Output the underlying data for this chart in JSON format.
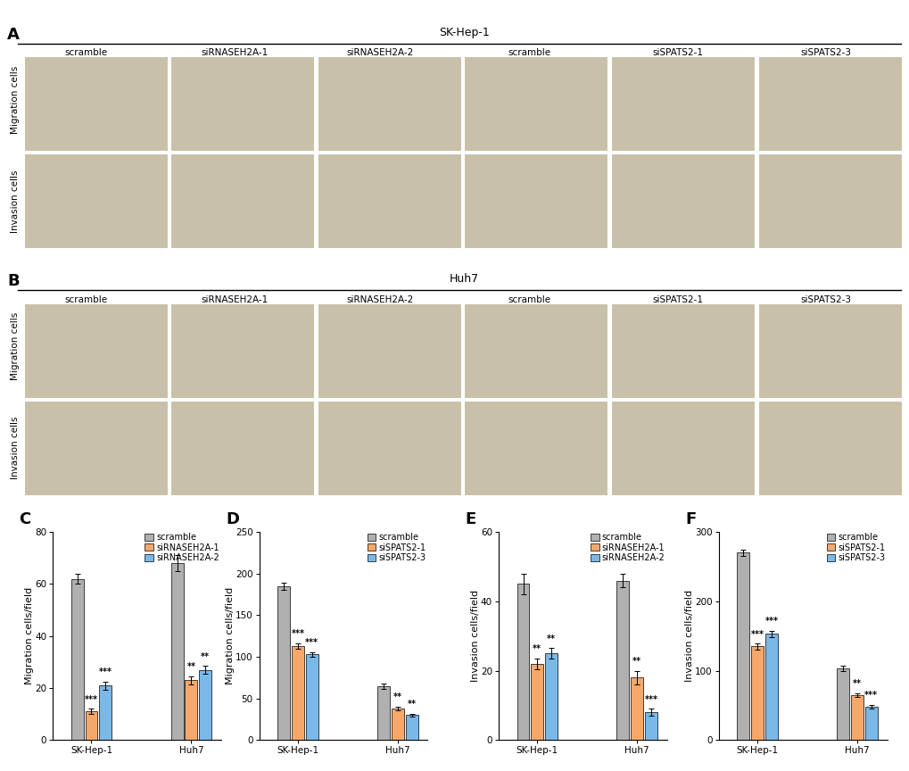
{
  "panel_C": {
    "title": "C",
    "ylabel": "Migration cells/field",
    "ylim": [
      0,
      80
    ],
    "yticks": [
      0,
      20,
      40,
      60,
      80
    ],
    "groups": [
      "SK-Hep-1",
      "Huh7"
    ],
    "legend": [
      "scramble",
      "siRNASEH2A-1",
      "siRNASEH2A-2"
    ],
    "values": [
      [
        62,
        11,
        21
      ],
      [
        68,
        23,
        27
      ]
    ],
    "errors": [
      [
        2.0,
        1.0,
        1.5
      ],
      [
        3.0,
        1.5,
        1.5
      ]
    ],
    "sig": [
      [
        "",
        "***",
        "***"
      ],
      [
        "",
        "**",
        "**"
      ]
    ]
  },
  "panel_D": {
    "title": "D",
    "ylabel": "Migration cells/field",
    "ylim": [
      0,
      250
    ],
    "yticks": [
      0,
      50,
      100,
      150,
      200,
      250
    ],
    "groups": [
      "SK-Hep-1",
      "Huh7"
    ],
    "legend": [
      "scramble",
      "siSPATS2-1",
      "siSPATS2-3"
    ],
    "values": [
      [
        185,
        113,
        103
      ],
      [
        65,
        38,
        30
      ]
    ],
    "errors": [
      [
        4.0,
        3.0,
        3.0
      ],
      [
        3.0,
        2.0,
        2.0
      ]
    ],
    "sig": [
      [
        "",
        "***",
        "***"
      ],
      [
        "",
        "**",
        "**"
      ]
    ]
  },
  "panel_E": {
    "title": "E",
    "ylabel": "Invasion cells/field",
    "ylim": [
      0,
      60
    ],
    "yticks": [
      0,
      20,
      40,
      60
    ],
    "groups": [
      "SK-Hep-1",
      "Huh7"
    ],
    "legend": [
      "scramble",
      "siRNASEH2A-1",
      "siRNASEH2A-2"
    ],
    "values": [
      [
        45,
        22,
        25
      ],
      [
        46,
        18,
        8
      ]
    ],
    "errors": [
      [
        3.0,
        1.5,
        1.5
      ],
      [
        2.0,
        2.0,
        1.0
      ]
    ],
    "sig": [
      [
        "",
        "**",
        "**"
      ],
      [
        "",
        "**",
        "***"
      ]
    ]
  },
  "panel_F": {
    "title": "F",
    "ylabel": "Invasion cells/field",
    "ylim": [
      0,
      300
    ],
    "yticks": [
      0,
      100,
      200,
      300
    ],
    "groups": [
      "SK-Hep-1",
      "Huh7"
    ],
    "legend": [
      "scramble",
      "siSPATS2-1",
      "siSPATS2-3"
    ],
    "values": [
      [
        270,
        135,
        153
      ],
      [
        103,
        65,
        48
      ]
    ],
    "errors": [
      [
        5.0,
        4.0,
        5.0
      ],
      [
        4.0,
        3.0,
        3.0
      ]
    ],
    "sig": [
      [
        "",
        "***",
        "***"
      ],
      [
        "",
        "**",
        "***"
      ]
    ]
  },
  "bar_colors": [
    "#b0b0b0",
    "#f5a86a",
    "#7ab8e8"
  ],
  "sig_fontsize": 7,
  "axis_label_fontsize": 8,
  "tick_fontsize": 7.5,
  "legend_fontsize": 7,
  "panel_label_fontsize": 13,
  "background_color": "#ffffff",
  "img_color_main": "#c8c0a8",
  "col_label_fontsize": 7.5,
  "row_label_fontsize": 7.5,
  "col_labels": [
    "scramble",
    "siRNASEH2A-1",
    "siRNASEH2A-2",
    "scramble",
    "siSPATS2-1",
    "siSPATS2-3"
  ],
  "row_labels": [
    "Migration cells",
    "Invasion cells"
  ],
  "panel_A_cell_line": "SK-Hep-1",
  "panel_B_cell_line": "Huh7"
}
